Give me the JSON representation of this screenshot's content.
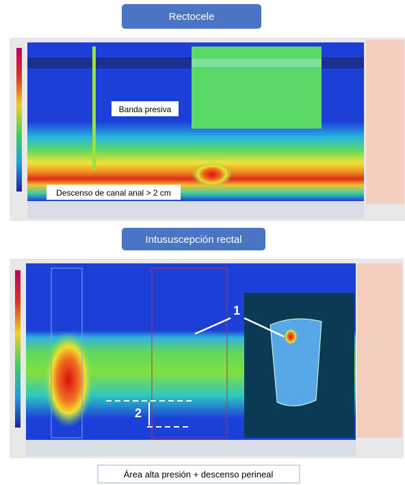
{
  "panels": [
    {
      "title": "Rectocele",
      "annotations": [
        "Banda presiva",
        "Descenso de canal anal > 2 cm"
      ]
    },
    {
      "title": "Intususcepción rectal",
      "annotations": [
        "1",
        "2"
      ]
    }
  ],
  "caption": "Área alta presión + descenso perineal"
}
